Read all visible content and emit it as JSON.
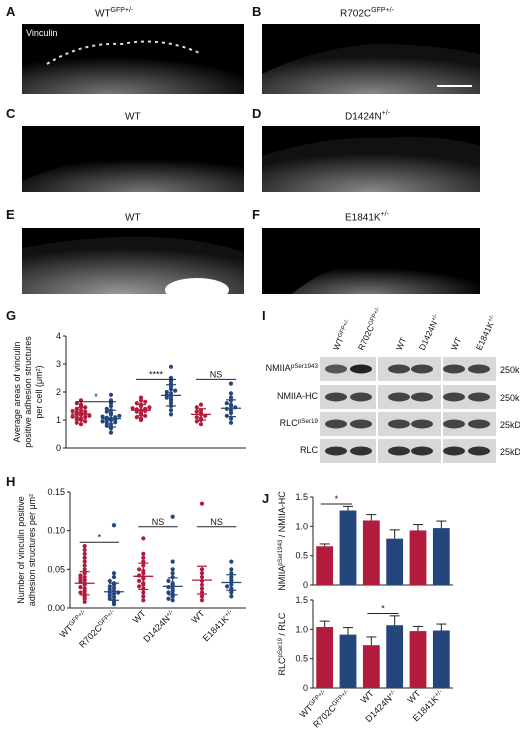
{
  "panels": {
    "A": {
      "letter": "A",
      "title": "WT",
      "sup": "GFP+/-",
      "overlay": "Vinculin"
    },
    "B": {
      "letter": "B",
      "title": "R702C",
      "sup": "GFP+/-"
    },
    "C": {
      "letter": "C",
      "title": "WT",
      "sup": ""
    },
    "D": {
      "letter": "D",
      "title": "D1424N",
      "sup": "+/-"
    },
    "E": {
      "letter": "E",
      "title": "WT",
      "sup": ""
    },
    "F": {
      "letter": "F",
      "title": "E1841K",
      "sup": "+/-"
    },
    "G": {
      "letter": "G"
    },
    "H": {
      "letter": "H"
    },
    "I": {
      "letter": "I"
    },
    "J": {
      "letter": "J"
    }
  },
  "colors": {
    "red": "#b31b3c",
    "blue": "#25467d",
    "black": "#000000"
  },
  "chart_data": [
    {
      "id": "G",
      "type": "scatter",
      "ylabel_lines": [
        "Average areas of vinculin",
        "positive adhesion structures",
        "per cell (μm²)"
      ],
      "ylim": [
        0,
        4
      ],
      "yticks": [
        "0",
        "1",
        "2",
        "3",
        "4"
      ],
      "groups": [
        {
          "color": "red",
          "mean": 1.22,
          "sd": 0.22,
          "values": [
            0.85,
            0.9,
            0.95,
            1.0,
            1.02,
            1.05,
            1.08,
            1.1,
            1.12,
            1.15,
            1.18,
            1.2,
            1.22,
            1.25,
            1.28,
            1.3,
            1.32,
            1.35,
            1.4,
            1.45,
            1.5,
            1.55,
            1.6,
            1.7
          ]
        },
        {
          "color": "blue",
          "mean": 1.05,
          "sd": 0.3,
          "values": [
            0.55,
            0.7,
            0.75,
            0.8,
            0.85,
            0.9,
            0.92,
            0.95,
            1.0,
            1.0,
            1.02,
            1.05,
            1.08,
            1.1,
            1.12,
            1.15,
            1.2,
            1.25,
            1.3,
            1.35,
            1.4,
            1.5,
            1.6,
            1.7,
            1.9
          ]
        },
        {
          "color": "red",
          "mean": 1.35,
          "sd": 0.2,
          "values": [
            1.0,
            1.05,
            1.1,
            1.15,
            1.2,
            1.25,
            1.3,
            1.32,
            1.35,
            1.38,
            1.4,
            1.42,
            1.45,
            1.5,
            1.55,
            1.6,
            1.65,
            1.7,
            1.8
          ]
        },
        {
          "color": "blue",
          "mean": 1.88,
          "sd": 0.38,
          "values": [
            1.2,
            1.35,
            1.5,
            1.6,
            1.7,
            1.75,
            1.8,
            1.85,
            1.9,
            1.95,
            2.0,
            2.05,
            2.1,
            2.2,
            2.3,
            2.4,
            2.5,
            2.9
          ]
        },
        {
          "color": "red",
          "mean": 1.2,
          "sd": 0.2,
          "values": [
            0.85,
            0.95,
            1.0,
            1.05,
            1.1,
            1.15,
            1.2,
            1.25,
            1.3,
            1.35,
            1.45,
            1.55
          ]
        },
        {
          "color": "blue",
          "mean": 1.42,
          "sd": 0.3,
          "values": [
            0.9,
            1.05,
            1.15,
            1.25,
            1.35,
            1.4,
            1.45,
            1.5,
            1.55,
            1.6,
            1.7,
            1.8,
            1.95,
            2.3
          ]
        }
      ],
      "sig": [
        {
          "g1": 0,
          "g2": 1,
          "y": 1.65,
          "label": "*"
        },
        {
          "g1": 2,
          "g2": 3,
          "y": 2.45,
          "label": "****"
        },
        {
          "g1": 4,
          "g2": 5,
          "y": 2.45,
          "label": "NS"
        }
      ]
    },
    {
      "id": "H",
      "type": "scatter",
      "ylabel_lines": [
        "Number of vinculin positive",
        "adhesion structures per μm²"
      ],
      "ylim": [
        0,
        0.15
      ],
      "yticks": [
        "0.00",
        "0.05",
        "0.10",
        "0.15"
      ],
      "xticks": [
        {
          "text": "WT",
          "sup": "GFP+/-"
        },
        {
          "text": "R702C",
          "sup": "GFP+/-"
        },
        {
          "text": "WT",
          "sup": ""
        },
        {
          "text": "D1424N",
          "sup": "+/-"
        },
        {
          "text": "WT",
          "sup": ""
        },
        {
          "text": "E1841K",
          "sup": "+/-"
        }
      ],
      "groups": [
        {
          "color": "red",
          "mean": 0.032,
          "sd": 0.015,
          "values": [
            0.008,
            0.012,
            0.015,
            0.018,
            0.02,
            0.022,
            0.025,
            0.027,
            0.03,
            0.032,
            0.034,
            0.036,
            0.038,
            0.04,
            0.042,
            0.045,
            0.05,
            0.055,
            0.06,
            0.065,
            0.07,
            0.075,
            0.08
          ]
        },
        {
          "color": "blue",
          "mean": 0.021,
          "sd": 0.011,
          "values": [
            0.005,
            0.008,
            0.01,
            0.012,
            0.014,
            0.016,
            0.018,
            0.02,
            0.02,
            0.022,
            0.024,
            0.026,
            0.028,
            0.03,
            0.032,
            0.035,
            0.04,
            0.045,
            0.107
          ]
        },
        {
          "color": "red",
          "mean": 0.041,
          "sd": 0.017,
          "values": [
            0.01,
            0.015,
            0.02,
            0.025,
            0.028,
            0.03,
            0.032,
            0.035,
            0.038,
            0.04,
            0.042,
            0.045,
            0.048,
            0.05,
            0.055,
            0.06,
            0.065,
            0.07,
            0.09
          ]
        },
        {
          "color": "blue",
          "mean": 0.028,
          "sd": 0.011,
          "values": [
            0.01,
            0.012,
            0.015,
            0.018,
            0.02,
            0.022,
            0.025,
            0.027,
            0.03,
            0.032,
            0.035,
            0.04,
            0.045,
            0.05,
            0.06,
            0.118
          ]
        },
        {
          "color": "red",
          "mean": 0.036,
          "sd": 0.018,
          "values": [
            0.01,
            0.015,
            0.02,
            0.025,
            0.03,
            0.035,
            0.04,
            0.045,
            0.05,
            0.135
          ]
        },
        {
          "color": "blue",
          "mean": 0.033,
          "sd": 0.01,
          "values": [
            0.015,
            0.02,
            0.022,
            0.025,
            0.028,
            0.03,
            0.033,
            0.036,
            0.04,
            0.045,
            0.05,
            0.06
          ]
        }
      ],
      "sig": [
        {
          "g1": 0,
          "g2": 1,
          "y": 0.085,
          "label": "*"
        },
        {
          "g1": 2,
          "g2": 3,
          "y": 0.105,
          "label": "NS"
        },
        {
          "g1": 4,
          "g2": 5,
          "y": 0.105,
          "label": "NS"
        }
      ]
    },
    {
      "id": "J-top",
      "type": "bar",
      "ylabel": "NMIIA",
      "ylabel_sup": "pSer1943",
      "ylabel_tail": " / NMIIA-HC",
      "ylim": [
        0,
        1.5
      ],
      "yticks": [
        "0",
        "0.5",
        "1.0",
        "1.5"
      ],
      "values": [
        0.66,
        1.27,
        1.1,
        0.79,
        0.93,
        0.97
      ],
      "errors": [
        0.04,
        0.07,
        0.1,
        0.15,
        0.1,
        0.12
      ],
      "colors": [
        "red",
        "blue",
        "red",
        "blue",
        "red",
        "blue"
      ],
      "sig": [
        {
          "g1": 0,
          "g2": 1,
          "y": 1.38,
          "label": "*"
        }
      ]
    },
    {
      "id": "J-bottom",
      "type": "bar",
      "ylabel": "RLC",
      "ylabel_sup": "pSer19",
      "ylabel_tail": " / RLC",
      "ylim": [
        0,
        1.5
      ],
      "yticks": [
        "0",
        "0.5",
        "1.0",
        "1.5"
      ],
      "values": [
        1.04,
        0.91,
        0.73,
        1.07,
        0.97,
        0.98
      ],
      "errors": [
        0.1,
        0.12,
        0.14,
        0.16,
        0.08,
        0.11
      ],
      "colors": [
        "red",
        "blue",
        "red",
        "blue",
        "red",
        "blue"
      ],
      "xticks": [
        {
          "text": "WT",
          "sup": "GFP+/-"
        },
        {
          "text": "R702C",
          "sup": "GFP+/-"
        },
        {
          "text": "WT",
          "sup": ""
        },
        {
          "text": "D1424N",
          "sup": "+/-"
        },
        {
          "text": "WT",
          "sup": ""
        },
        {
          "text": "E1841K",
          "sup": "+/-"
        }
      ],
      "sig": [
        {
          "g1": 2,
          "g2": 3,
          "y": 1.27,
          "label": "*"
        }
      ]
    }
  ],
  "blot": {
    "lanes": [
      {
        "text": "WT",
        "sup": "GFP+/-"
      },
      {
        "text": "R702C",
        "sup": "GFP+/-"
      },
      {
        "text": "WT",
        "sup": ""
      },
      {
        "text": "D1424N",
        "sup": "+/-"
      },
      {
        "text": "WT",
        "sup": ""
      },
      {
        "text": "E1841K",
        "sup": "+/-"
      }
    ],
    "rows": [
      {
        "label": "NMIIA",
        "sup": "pSer1943",
        "marker": "250kD"
      },
      {
        "label": "NMIIA-HC",
        "sup": "",
        "marker": "250kD"
      },
      {
        "label": "RLC",
        "sup": "pSer19",
        "marker": "25kD"
      },
      {
        "label": "RLC",
        "sup": "",
        "marker": "25kD"
      }
    ]
  }
}
